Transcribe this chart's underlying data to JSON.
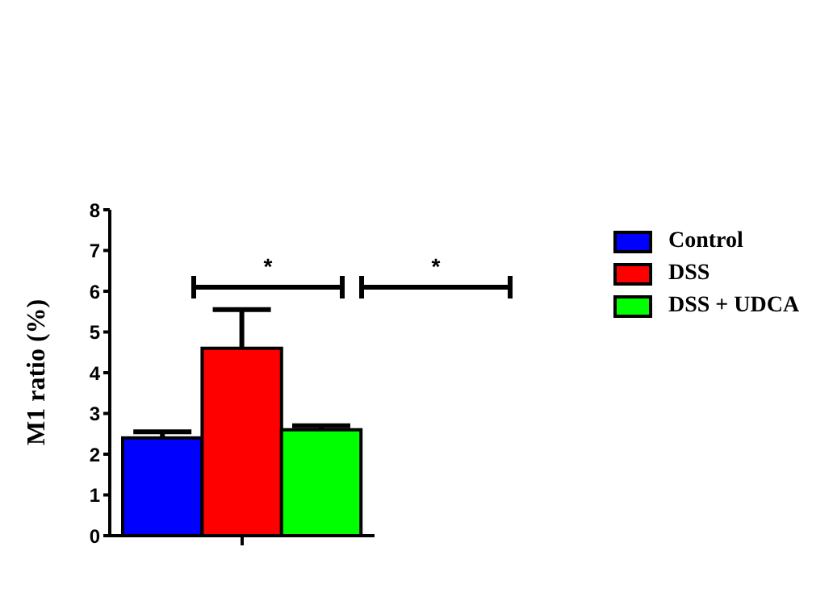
{
  "chart_data": {
    "type": "bar",
    "ylabel": "M1 ratio (%)",
    "categories": [
      null
    ],
    "series": [
      {
        "name": "Control",
        "color": "#0000ff",
        "values": [
          2.4
        ],
        "errors": [
          [
            2.4,
            2.55
          ]
        ]
      },
      {
        "name": "DSS",
        "color": "#ff0000",
        "values": [
          4.6
        ],
        "errors": [
          [
            4.6,
            5.55
          ]
        ]
      },
      {
        "name": "DSS + UDCA",
        "color": "#00ff00",
        "values": [
          2.6
        ],
        "errors": [
          [
            2.6,
            2.7
          ]
        ]
      }
    ],
    "ylim": [
      0,
      8
    ],
    "yticks": [
      0,
      1,
      2,
      3,
      4,
      5,
      6,
      7,
      8
    ],
    "grid": false,
    "legend": "right",
    "annotations": [
      "*",
      "*"
    ]
  }
}
